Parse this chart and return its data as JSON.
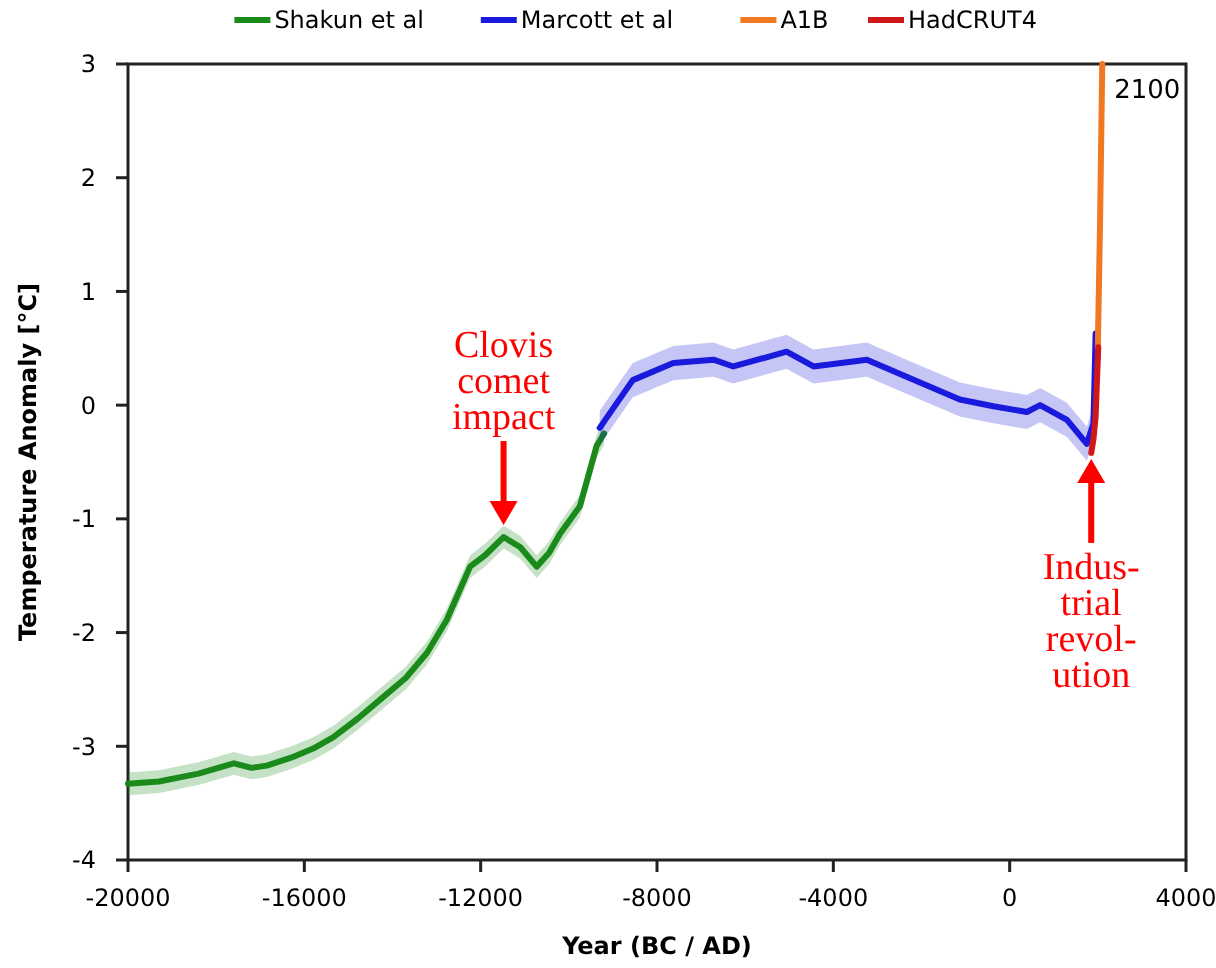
{
  "chart_data": {
    "type": "line",
    "xlabel": "Year (BC / AD)",
    "ylabel": "Temperature Anomaly [°C]",
    "xlim": [
      -20000,
      4000
    ],
    "xticks": [
      -20000,
      -16000,
      -12000,
      -8000,
      -4000,
      0,
      4000
    ],
    "ylim": [
      -4,
      3
    ],
    "yticks": [
      -4,
      -3,
      -2,
      -1,
      0,
      1,
      2,
      3
    ],
    "grid": false,
    "legend": "top",
    "marker": "none",
    "line_style": "solid",
    "series": [
      {
        "name": "Shakun et al",
        "color": "#1a8a1a",
        "x": [
          -20000,
          -19300,
          -18400,
          -17600,
          -17200,
          -16850,
          -16300,
          -15800,
          -15340,
          -14800,
          -14280,
          -13700,
          -13220,
          -12770,
          -12500,
          -12240,
          -11900,
          -11480,
          -11100,
          -10730,
          -10450,
          -10200,
          -9750,
          -9370,
          -9200
        ],
        "values": [
          -3.33,
          -3.31,
          -3.24,
          -3.15,
          -3.19,
          -3.17,
          -3.1,
          -3.02,
          -2.92,
          -2.76,
          -2.59,
          -2.4,
          -2.18,
          -1.89,
          -1.65,
          -1.42,
          -1.32,
          -1.16,
          -1.25,
          -1.42,
          -1.3,
          -1.13,
          -0.89,
          -0.36,
          -0.25
        ],
        "lower": [
          -3.43,
          -3.41,
          -3.34,
          -3.25,
          -3.29,
          -3.27,
          -3.2,
          -3.12,
          -3.02,
          -2.86,
          -2.69,
          -2.5,
          -2.28,
          -1.99,
          -1.75,
          -1.52,
          -1.42,
          -1.26,
          -1.35,
          -1.52,
          -1.4,
          -1.23,
          -0.99,
          -0.46,
          -0.35
        ],
        "upper": [
          -3.23,
          -3.21,
          -3.14,
          -3.05,
          -3.09,
          -3.07,
          -3.0,
          -2.92,
          -2.82,
          -2.66,
          -2.49,
          -2.3,
          -2.08,
          -1.79,
          -1.55,
          -1.32,
          -1.22,
          -1.06,
          -1.15,
          -1.32,
          -1.2,
          -1.03,
          -0.79,
          -0.26,
          -0.15
        ]
      },
      {
        "name": "Marcott et al",
        "color": "#1a1adc",
        "x": [
          -9300,
          -8550,
          -7630,
          -6720,
          -6270,
          -5060,
          -4450,
          -3240,
          -2340,
          -1130,
          -370,
          390,
          690,
          1300,
          1750,
          1900,
          1950
        ],
        "values": [
          -0.2,
          0.22,
          0.37,
          0.4,
          0.34,
          0.47,
          0.34,
          0.4,
          0.25,
          0.05,
          -0.01,
          -0.06,
          0.0,
          -0.13,
          -0.34,
          -0.16,
          0.63
        ],
        "lower": [
          -0.35,
          0.07,
          0.22,
          0.25,
          0.19,
          0.32,
          0.19,
          0.25,
          0.1,
          -0.1,
          -0.16,
          -0.21,
          -0.15,
          -0.28,
          -0.49,
          -0.31,
          0.48
        ],
        "upper": [
          -0.05,
          0.37,
          0.52,
          0.55,
          0.49,
          0.62,
          0.49,
          0.55,
          0.4,
          0.2,
          0.14,
          0.09,
          0.15,
          0.02,
          -0.19,
          -0.01,
          0.78
        ]
      },
      {
        "name": "A1B",
        "color": "#f07820",
        "x": [
          2000,
          2050,
          2100
        ],
        "values": [
          0.5,
          1.6,
          3.0
        ]
      },
      {
        "name": "HadCRUT4",
        "color": "#d01818",
        "x": [
          1850,
          1900,
          1950,
          2010
        ],
        "values": [
          -0.42,
          -0.3,
          -0.1,
          0.51
        ]
      }
    ],
    "annotations": [
      {
        "text": "Clovis\ncomet\nimpact",
        "x": -11480,
        "y": -1.16
      },
      {
        "text": "Indus-\ntrial\nrevol-\nution",
        "x": 1850,
        "y": -0.42
      },
      {
        "text": "2100",
        "x": 2100,
        "y": 3
      }
    ]
  }
}
